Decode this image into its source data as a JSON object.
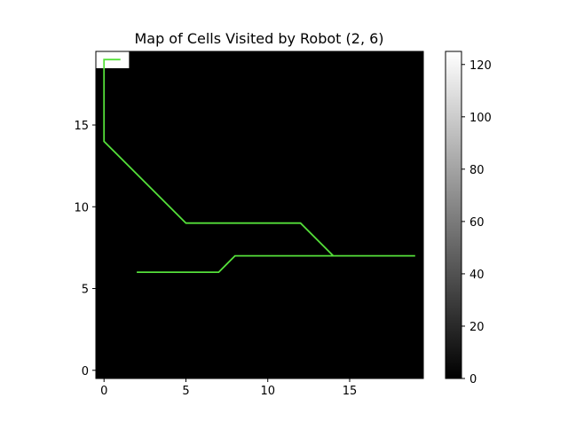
{
  "chart_data": {
    "type": "heatmap",
    "title": "Map of Cells Visited by Robot (2, 6)",
    "xlabel": "",
    "ylabel": "",
    "xlim": [
      -0.5,
      19.5
    ],
    "ylim": [
      -0.5,
      19.5
    ],
    "x_ticks": [
      0,
      5,
      10,
      15
    ],
    "y_ticks": [
      0,
      5,
      10,
      15
    ],
    "grid": false,
    "grid_size": [
      20,
      20
    ],
    "background_value": 0,
    "visited_cells": [
      {
        "x": 0,
        "y": 19,
        "value": 125
      },
      {
        "x": 1,
        "y": 19,
        "value": 125
      }
    ],
    "colorbar": {
      "min": 0,
      "max": 125,
      "ticks": [
        0,
        20,
        40,
        60,
        80,
        100,
        120
      ],
      "colormap": "gray"
    },
    "path": {
      "color": "#55e03a",
      "points": [
        [
          2,
          6
        ],
        [
          7,
          6
        ],
        [
          8,
          7
        ],
        [
          14,
          7
        ],
        [
          19,
          7
        ],
        [
          14,
          7
        ],
        [
          12,
          9
        ],
        [
          5,
          9
        ],
        [
          0,
          14
        ],
        [
          0,
          19
        ],
        [
          1,
          19
        ]
      ]
    },
    "colors": {
      "background": "#000000",
      "path": "#55e03a",
      "visited": "#ffffff"
    }
  }
}
